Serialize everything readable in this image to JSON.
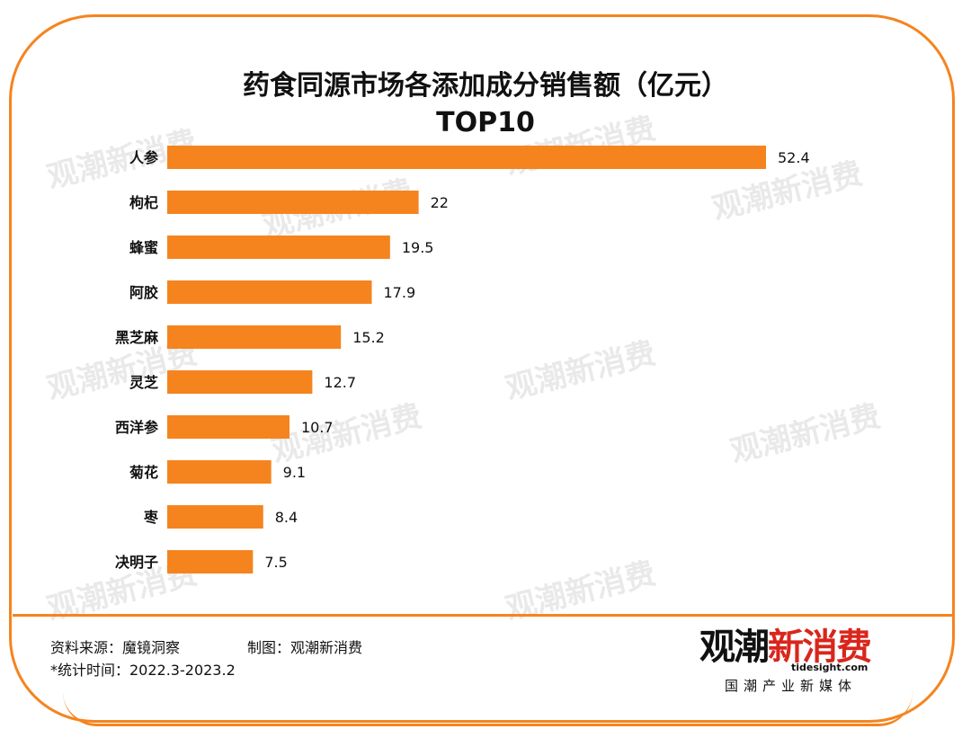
{
  "chart_data": {
    "type": "bar",
    "orientation": "horizontal",
    "title": "药食同源市场各添加成分销售额（亿元）",
    "subtitle": "TOP10",
    "categories": [
      "人参",
      "枸杞",
      "蜂蜜",
      "阿胶",
      "黑芝麻",
      "灵芝",
      "西洋参",
      "菊花",
      "枣",
      "决明子"
    ],
    "values": [
      52.4,
      22,
      19.5,
      17.9,
      15.2,
      12.7,
      10.7,
      9.1,
      8.4,
      7.5
    ],
    "value_labels": [
      "52.4",
      "22",
      "19.5",
      "17.9",
      "15.2",
      "12.7",
      "10.7",
      "9.1",
      "8.4",
      "7.5"
    ],
    "xlim": [
      0,
      52.4
    ],
    "bar_color": "#f5841f",
    "grid": false,
    "legend": "none"
  },
  "footer": {
    "source": "资料来源：魔镜洞察",
    "maker": "制图：观潮新消费",
    "period": "*统计时间：2022.3-2023.2"
  },
  "logo": {
    "name_a": "观潮",
    "name_b": "新消费",
    "url": "tidesight.com",
    "tagline": "国潮产业新媒体"
  },
  "watermark": {
    "name": "观潮新消费",
    "url": "tidesight.com",
    "tagline": "国潮产业新媒体"
  },
  "colors": {
    "accent": "#f5841f",
    "brand_red": "#d9261c"
  }
}
